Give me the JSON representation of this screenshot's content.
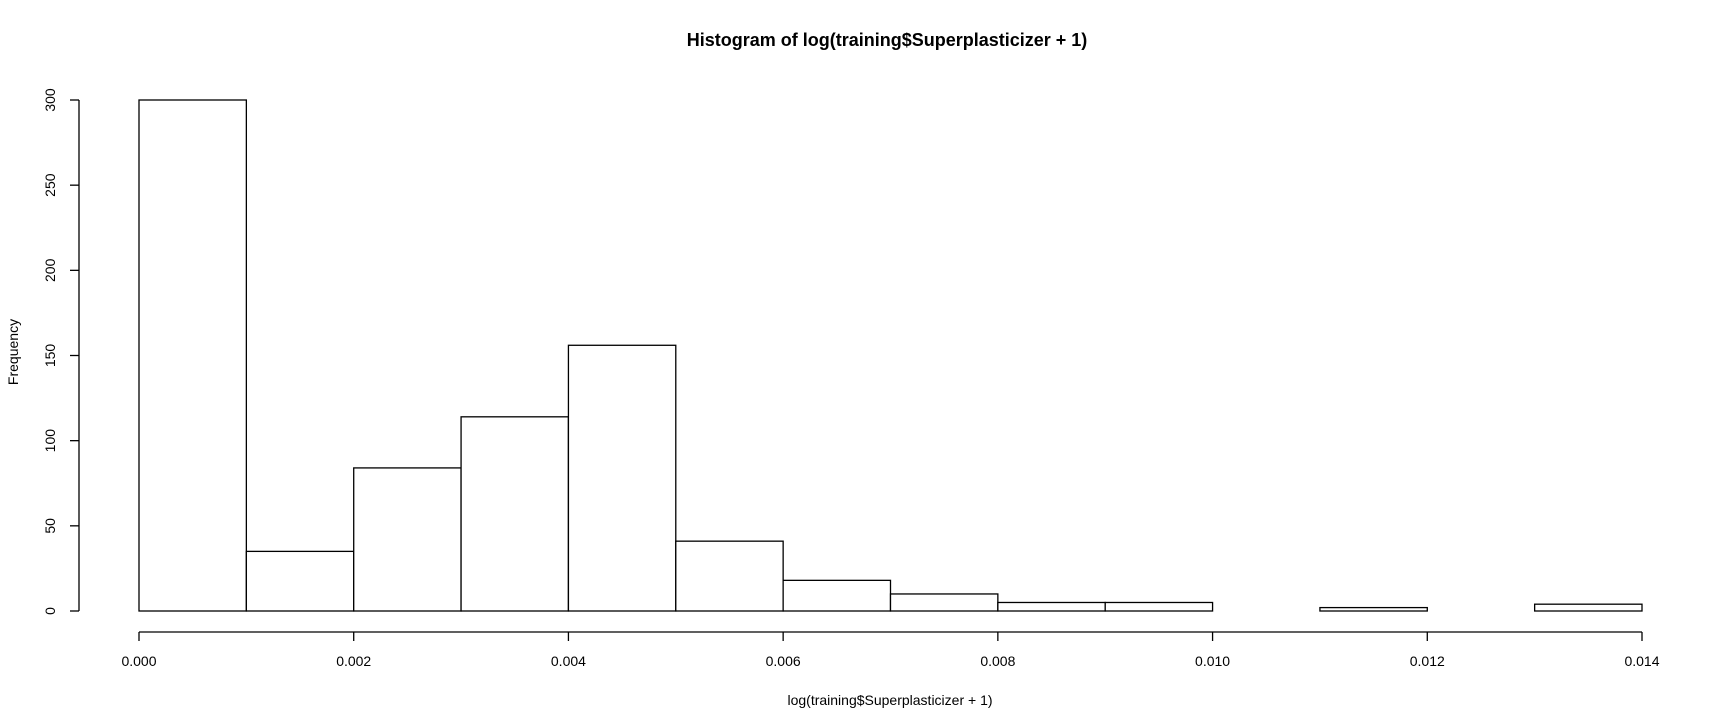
{
  "chart_data": {
    "type": "bar",
    "title": "Histogram of log(training$Superplasticizer + 1)",
    "xlabel": "log(training$Superplasticizer + 1)",
    "ylabel": "Frequency",
    "bins": [
      {
        "x0": 0.0,
        "x1": 0.001,
        "count": 300
      },
      {
        "x0": 0.001,
        "x1": 0.002,
        "count": 35
      },
      {
        "x0": 0.002,
        "x1": 0.003,
        "count": 84
      },
      {
        "x0": 0.003,
        "x1": 0.004,
        "count": 114
      },
      {
        "x0": 0.004,
        "x1": 0.005,
        "count": 156
      },
      {
        "x0": 0.005,
        "x1": 0.006,
        "count": 41
      },
      {
        "x0": 0.006,
        "x1": 0.007,
        "count": 18
      },
      {
        "x0": 0.007,
        "x1": 0.008,
        "count": 10
      },
      {
        "x0": 0.008,
        "x1": 0.009,
        "count": 5
      },
      {
        "x0": 0.009,
        "x1": 0.01,
        "count": 5
      },
      {
        "x0": 0.01,
        "x1": 0.011,
        "count": 0
      },
      {
        "x0": 0.011,
        "x1": 0.012,
        "count": 2
      },
      {
        "x0": 0.012,
        "x1": 0.013,
        "count": 0
      },
      {
        "x0": 0.013,
        "x1": 0.014,
        "count": 4
      }
    ],
    "xlim": [
      0.0,
      0.014
    ],
    "ylim": [
      0,
      300
    ],
    "x_ticks": [
      {
        "value": 0.0,
        "label": "0.000"
      },
      {
        "value": 0.002,
        "label": "0.002"
      },
      {
        "value": 0.004,
        "label": "0.004"
      },
      {
        "value": 0.006,
        "label": "0.006"
      },
      {
        "value": 0.008,
        "label": "0.008"
      },
      {
        "value": 0.01,
        "label": "0.010"
      },
      {
        "value": 0.012,
        "label": "0.012"
      },
      {
        "value": 0.014,
        "label": "0.014"
      }
    ],
    "y_ticks": [
      {
        "value": 0,
        "label": "0"
      },
      {
        "value": 50,
        "label": "50"
      },
      {
        "value": 100,
        "label": "100"
      },
      {
        "value": 150,
        "label": "150"
      },
      {
        "value": 200,
        "label": "200"
      },
      {
        "value": 250,
        "label": "250"
      },
      {
        "value": 300,
        "label": "300"
      }
    ],
    "grid": false,
    "bar_fill": "#ffffff",
    "bar_stroke": "#000000"
  }
}
